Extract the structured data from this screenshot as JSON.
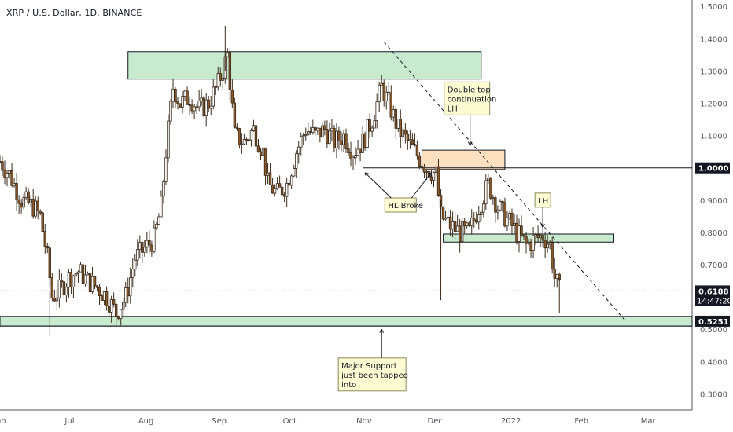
{
  "header": {
    "symbol_title": "XRP / U.S. Dollar, 1D, BINANCE"
  },
  "chart_data": {
    "type": "candlestick",
    "title": "XRP / U.S. Dollar, 1D, BINANCE",
    "ylim": [
      0.25,
      1.52
    ],
    "y_ticks": [
      "1.5000",
      "1.4000",
      "1.3000",
      "1.2000",
      "1.1000",
      "1.0000",
      "0.9000",
      "0.8000",
      "0.7000",
      "0.6000",
      "0.5000",
      "0.4000",
      "0.3000"
    ],
    "x_ticks": [
      "Jun",
      "Jul",
      "Aug",
      "Sep",
      "Oct",
      "Nov",
      "Dec",
      "2022",
      "Feb",
      "Mar"
    ],
    "x_range": [
      "2021-06-01",
      "2022-03-20"
    ],
    "price_labels": [
      {
        "value": 1.0,
        "text": "1.0000",
        "style": "dark"
      },
      {
        "value": 0.6188,
        "text": "0.6188",
        "sub": "14:47:20",
        "style": "dark"
      },
      {
        "value": 0.5251,
        "text": "0.5251",
        "style": "dark"
      }
    ],
    "current_price": 0.6188,
    "series_close": [
      {
        "date": "2021-06-01",
        "close": 1.02
      },
      {
        "date": "2021-06-05",
        "close": 0.98
      },
      {
        "date": "2021-06-10",
        "close": 0.9
      },
      {
        "date": "2021-06-15",
        "close": 0.88
      },
      {
        "date": "2021-06-18",
        "close": 0.85
      },
      {
        "date": "2021-06-21",
        "close": 0.72
      },
      {
        "date": "2021-06-23",
        "close": 0.6
      },
      {
        "date": "2021-06-26",
        "close": 0.62
      },
      {
        "date": "2021-06-30",
        "close": 0.66
      },
      {
        "date": "2021-07-04",
        "close": 0.68
      },
      {
        "date": "2021-07-08",
        "close": 0.65
      },
      {
        "date": "2021-07-12",
        "close": 0.63
      },
      {
        "date": "2021-07-16",
        "close": 0.6
      },
      {
        "date": "2021-07-20",
        "close": 0.55
      },
      {
        "date": "2021-07-24",
        "close": 0.6
      },
      {
        "date": "2021-07-28",
        "close": 0.72
      },
      {
        "date": "2021-08-01",
        "close": 0.75
      },
      {
        "date": "2021-08-05",
        "close": 0.78
      },
      {
        "date": "2021-08-08",
        "close": 0.88
      },
      {
        "date": "2021-08-10",
        "close": 1.05
      },
      {
        "date": "2021-08-13",
        "close": 1.25
      },
      {
        "date": "2021-08-16",
        "close": 1.2
      },
      {
        "date": "2021-08-20",
        "close": 1.22
      },
      {
        "date": "2021-08-24",
        "close": 1.18
      },
      {
        "date": "2021-08-28",
        "close": 1.2
      },
      {
        "date": "2021-09-01",
        "close": 1.26
      },
      {
        "date": "2021-09-05",
        "close": 1.35
      },
      {
        "date": "2021-09-08",
        "close": 1.1
      },
      {
        "date": "2021-09-12",
        "close": 1.08
      },
      {
        "date": "2021-09-16",
        "close": 1.12
      },
      {
        "date": "2021-09-20",
        "close": 1.05
      },
      {
        "date": "2021-09-22",
        "close": 0.95
      },
      {
        "date": "2021-09-26",
        "close": 0.92
      },
      {
        "date": "2021-09-30",
        "close": 0.95
      },
      {
        "date": "2021-10-04",
        "close": 1.05
      },
      {
        "date": "2021-10-08",
        "close": 1.12
      },
      {
        "date": "2021-10-12",
        "close": 1.1
      },
      {
        "date": "2021-10-16",
        "close": 1.12
      },
      {
        "date": "2021-10-20",
        "close": 1.08
      },
      {
        "date": "2021-10-24",
        "close": 1.1
      },
      {
        "date": "2021-10-28",
        "close": 1.05
      },
      {
        "date": "2021-11-01",
        "close": 1.08
      },
      {
        "date": "2021-11-05",
        "close": 1.15
      },
      {
        "date": "2021-11-09",
        "close": 1.25
      },
      {
        "date": "2021-11-12",
        "close": 1.2
      },
      {
        "date": "2021-11-16",
        "close": 1.12
      },
      {
        "date": "2021-11-20",
        "close": 1.08
      },
      {
        "date": "2021-11-24",
        "close": 1.04
      },
      {
        "date": "2021-11-28",
        "close": 1.0
      },
      {
        "date": "2021-12-02",
        "close": 0.98
      },
      {
        "date": "2021-12-04",
        "close": 0.85
      },
      {
        "date": "2021-12-08",
        "close": 0.82
      },
      {
        "date": "2021-12-12",
        "close": 0.8
      },
      {
        "date": "2021-12-16",
        "close": 0.8
      },
      {
        "date": "2021-12-20",
        "close": 0.88
      },
      {
        "date": "2021-12-24",
        "close": 0.95
      },
      {
        "date": "2021-12-28",
        "close": 0.88
      },
      {
        "date": "2022-01-01",
        "close": 0.84
      },
      {
        "date": "2022-01-05",
        "close": 0.8
      },
      {
        "date": "2022-01-09",
        "close": 0.76
      },
      {
        "date": "2022-01-13",
        "close": 0.78
      },
      {
        "date": "2022-01-16",
        "close": 0.79
      },
      {
        "date": "2022-01-19",
        "close": 0.76
      },
      {
        "date": "2022-01-21",
        "close": 0.66
      },
      {
        "date": "2022-01-23",
        "close": 0.62
      }
    ],
    "zones": [
      {
        "kind": "resistance",
        "color": "#c8ebcf",
        "y_low": 1.275,
        "y_high": 1.36,
        "x_start": "2021-07-25",
        "x_end": "2021-12-21"
      },
      {
        "kind": "supply",
        "color": "#fde0c0",
        "y_low": 0.995,
        "y_high": 1.055,
        "x_start": "2021-11-26",
        "x_end": "2021-12-31"
      },
      {
        "kind": "flip",
        "color": "#c8ebcf",
        "y_low": 0.77,
        "y_high": 0.795,
        "x_start": "2021-12-05",
        "x_end": "2022-02-15"
      },
      {
        "kind": "support",
        "color": "#c8ebcf",
        "y_low": 0.51,
        "y_high": 0.54,
        "x_start": "2021-06-01",
        "x_end": "2022-03-20"
      }
    ],
    "lines": [
      {
        "kind": "horizontal",
        "value": 1.0,
        "x_start": "2021-11-01",
        "x_end": "2022-03-20",
        "color": "#131722"
      },
      {
        "kind": "horizontal",
        "value": 0.51,
        "x_start": "2021-06-01",
        "x_end": "2022-03-20",
        "color": "#131722"
      },
      {
        "kind": "trend",
        "style": "dashed",
        "from": {
          "date": "2021-11-10",
          "value": 1.39
        },
        "to": {
          "date": "2022-02-20",
          "value": 0.525
        },
        "color": "#131722"
      }
    ],
    "annotations": [
      {
        "text": "Double top\ncontinuation\nLH",
        "anchor_date": "2021-12-15",
        "anchor_value": 1.215
      },
      {
        "text": "HL Broke",
        "anchor_date": "2021-11-17",
        "anchor_value": 0.885
      },
      {
        "text": "LH",
        "anchor_date": "2022-01-16",
        "anchor_value": 0.9
      },
      {
        "text": "Major Support\njust been tapped\ninto",
        "anchor_date": "2021-11-05",
        "anchor_value": 0.36
      }
    ]
  }
}
